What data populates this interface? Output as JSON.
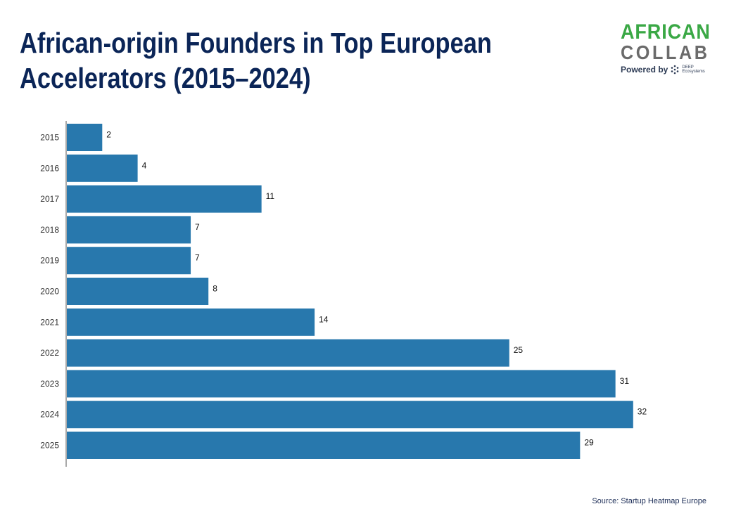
{
  "header": {
    "title_line1": "African-origin Founders in Top European",
    "title_line2": "Accelerators (2015–2024)"
  },
  "logo": {
    "line1": "AFRICAN",
    "line2": "COLLAB",
    "powered_by": "Powered by",
    "brand_top": "DEEP",
    "brand_bottom": "Ecosystems"
  },
  "footer": {
    "source": "Source: Startup Heatmap Europe"
  },
  "colors": {
    "bar": "#2878ad",
    "title": "#0b2557",
    "axis": "#555555"
  },
  "chart_data": {
    "type": "bar",
    "orientation": "horizontal",
    "categories": [
      "2015",
      "2016",
      "2017",
      "2018",
      "2019",
      "2020",
      "2021",
      "2022",
      "2023",
      "2024",
      "2025"
    ],
    "values": [
      2,
      4,
      11,
      7,
      7,
      8,
      14,
      25,
      31,
      32,
      29
    ],
    "title": "African-origin Founders in Top European Accelerators (2015–2024)",
    "xlabel": "",
    "ylabel": "",
    "xlim": [
      0,
      33
    ],
    "grid": false,
    "legend": "none"
  }
}
